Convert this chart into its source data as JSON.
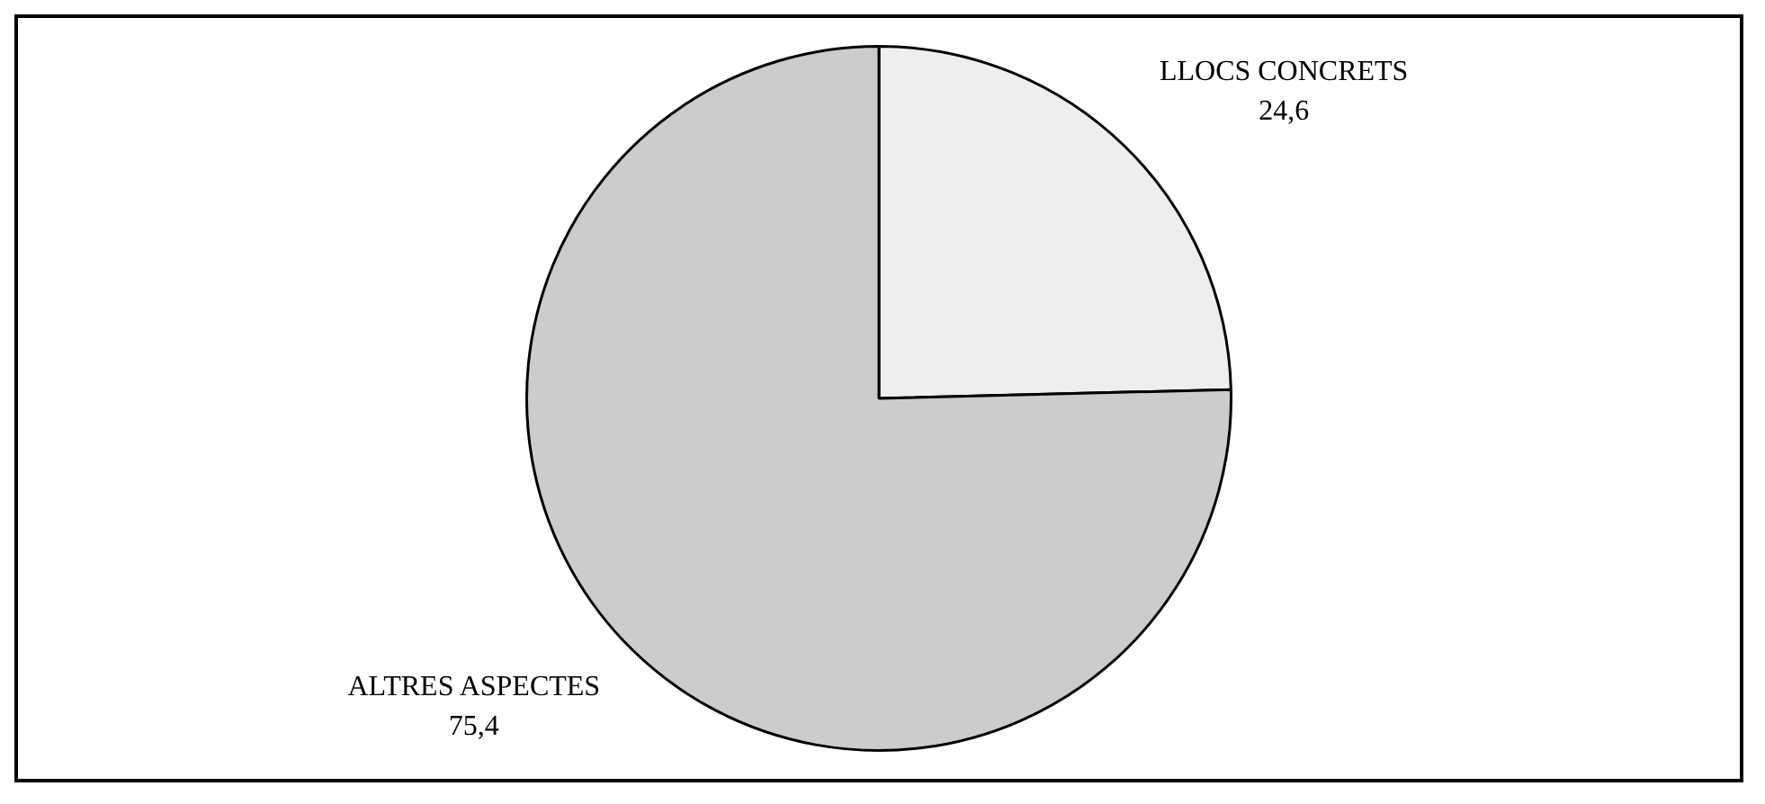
{
  "chart_data": {
    "type": "pie",
    "categories": [
      "LLOCS CONCRETS",
      "ALTRES ASPECTES"
    ],
    "values": [
      24.6,
      75.4
    ],
    "value_labels": [
      "24,6",
      "75,4"
    ],
    "colors": [
      "#eeeeee",
      "#cccccc"
    ],
    "legend": false
  }
}
